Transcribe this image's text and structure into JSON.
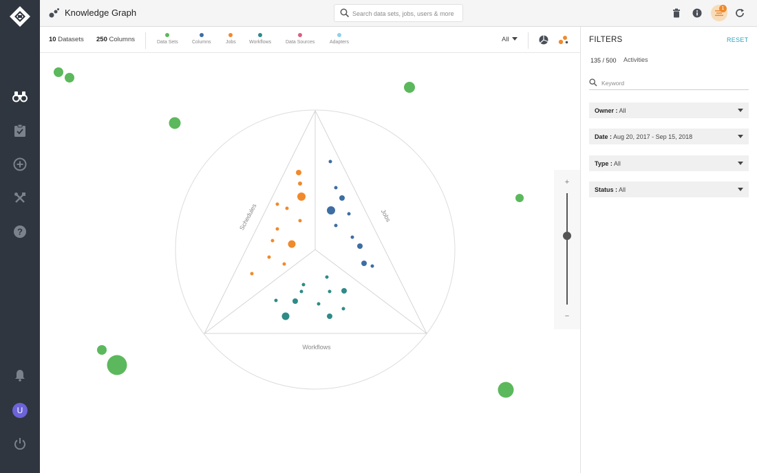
{
  "app": {
    "title": "Knowledge Graph"
  },
  "header": {
    "search_placeholder": "Search data sets, jobs, users & more",
    "activity_badge": "1"
  },
  "nav": {
    "items": [
      "explore-icon",
      "tasks-icon",
      "add-icon",
      "tools-icon",
      "help-icon"
    ],
    "avatar_initial": "U"
  },
  "toolbar": {
    "datasets_count": "10",
    "datasets_label": "Datasets",
    "columns_count": "250",
    "columns_label": "Columns",
    "legend": [
      {
        "label": "Data Sets",
        "color": "#5cb85c"
      },
      {
        "label": "Columns",
        "color": "#3e6da3"
      },
      {
        "label": "Jobs",
        "color": "#ef8a2d"
      },
      {
        "label": "Workflows",
        "color": "#2e8b87"
      },
      {
        "label": "Data Sources",
        "color": "#d9607d"
      },
      {
        "label": "Adapters",
        "color": "#8fd0e8"
      }
    ],
    "view_select": "All"
  },
  "graph": {
    "sections": {
      "schedules": "Schedules",
      "jobs": "Jobs",
      "workflows": "Workflows"
    },
    "colors": {
      "dataset": "#5cb85c",
      "column": "#3e6da3",
      "job": "#ef8a2d",
      "workflow": "#2e8b87",
      "frame": "#d8d8d8"
    }
  },
  "zoom": {
    "plus": "+",
    "minus": "−",
    "level": 0.62
  },
  "filters": {
    "title": "FILTERS",
    "reset": "RESET",
    "count": "135 / 500",
    "count_label": "Activities",
    "keyword_placeholder": "Keyword",
    "dropdowns": [
      {
        "key": "Owner :",
        "value": "All"
      },
      {
        "key": "Date :",
        "value": "Aug 20, 2017 - Sep 15, 2018"
      },
      {
        "key": "Type :",
        "value": "All"
      },
      {
        "key": "Status :",
        "value": "All"
      }
    ]
  }
}
